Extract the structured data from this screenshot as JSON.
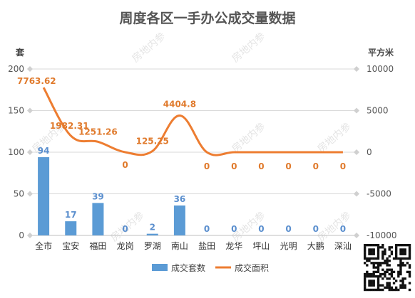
{
  "watermark": "房地内参",
  "chart_data": {
    "type": "bar",
    "title": "周度各区一手办公成交量数据",
    "left_axis_unit": "套",
    "right_axis_unit": "平方米",
    "categories": [
      "全市",
      "宝安",
      "福田",
      "龙岗",
      "罗湖",
      "南山",
      "盐田",
      "龙华",
      "坪山",
      "光明",
      "大鹏",
      "深汕"
    ],
    "left_ylim": [
      0,
      200
    ],
    "left_ticks": [
      0,
      50,
      100,
      150,
      200
    ],
    "right_ylim": [
      -10000,
      10000
    ],
    "right_ticks": [
      -10000,
      -5000,
      0,
      5000,
      10000
    ],
    "grid": true,
    "legend_position": "bottom",
    "series": [
      {
        "name": "成交套数",
        "type": "bar",
        "axis": "left",
        "color": "#5b9bd5",
        "values": [
          94,
          17,
          39,
          0,
          2,
          36,
          0,
          0,
          0,
          0,
          0,
          0
        ],
        "labels": [
          "94",
          "17",
          "39",
          "0",
          "2",
          "36",
          "0",
          "0",
          "0",
          "0",
          "0",
          "0"
        ]
      },
      {
        "name": "成交面积",
        "type": "line",
        "axis": "right",
        "color": "#ed7d31",
        "values": [
          7763.62,
          1982.31,
          1251.26,
          0,
          125.25,
          4404.8,
          0,
          0,
          0,
          0,
          0,
          0
        ],
        "labels": [
          "7763.62",
          "1982.31",
          "1251.26",
          "0",
          "125.25",
          "4404.8",
          "0",
          "0",
          "0",
          "0",
          "0",
          "0"
        ]
      }
    ]
  }
}
